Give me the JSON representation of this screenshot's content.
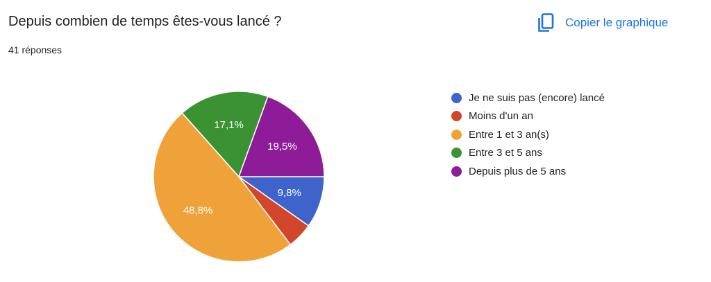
{
  "header": {
    "title": "Depuis combien de temps êtes-vous lancé ?",
    "responses": "41 réponses",
    "copy_label": "Copier le graphique",
    "copy_icon": "copy-icon"
  },
  "colors": {
    "accent": "#1a73e8"
  },
  "chart_data": {
    "type": "pie",
    "categories": [
      "Je ne suis pas (encore) lancé",
      "Moins d'un an",
      "Entre 1 et 3 an(s)",
      "Entre 3 et 5 ans",
      "Depuis plus de 5 ans"
    ],
    "values": [
      9.8,
      4.9,
      48.8,
      17.1,
      19.5
    ],
    "data_labels": [
      "9,8%",
      "",
      "48,8%",
      "17,1%",
      "19,5%"
    ],
    "colors": [
      "#3e64cc",
      "#d2472b",
      "#f0a23a",
      "#3b9233",
      "#8e1c98"
    ],
    "legend_position": "right"
  }
}
